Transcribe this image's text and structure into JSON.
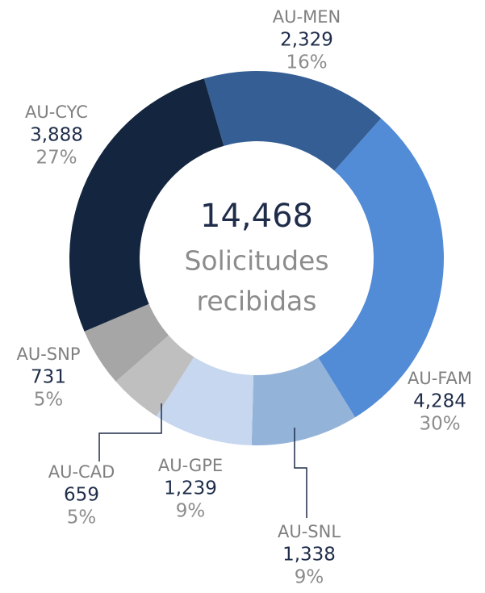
{
  "chart_data": {
    "type": "donut",
    "categories": [
      "AU-MEN",
      "AU-FAM",
      "AU-SNL",
      "AU-GPE",
      "AU-CAD",
      "AU-SNP",
      "AU-CYC"
    ],
    "values": [
      2329,
      4284,
      1338,
      1239,
      659,
      731,
      3888
    ],
    "value_labels": [
      "2,329",
      "4,284",
      "1,338",
      "1,239",
      "659",
      "731",
      "3,888"
    ],
    "percents": [
      16,
      30,
      9,
      9,
      5,
      5,
      27
    ],
    "percent_labels": [
      "16%",
      "30%",
      "9%",
      "9%",
      "5%",
      "5%",
      "27%"
    ],
    "colors": [
      "#345e94",
      "#528bd6",
      "#94b3d9",
      "#c6d7ef",
      "#bfbfbf",
      "#a6a6a6",
      "#14263f"
    ],
    "total": 14468,
    "total_label": "14,468",
    "center_lines": [
      "Solicitudes",
      "recibidas"
    ]
  }
}
